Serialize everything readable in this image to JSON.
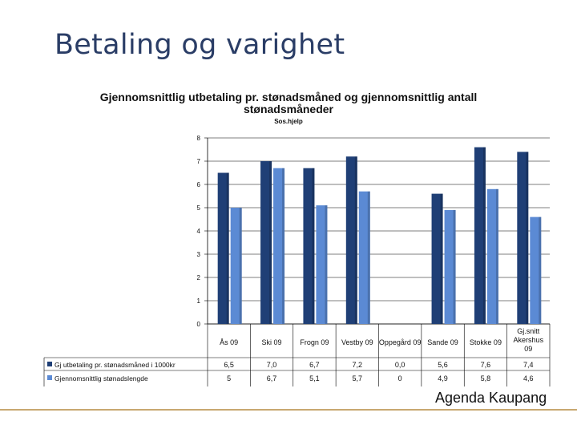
{
  "slide": {
    "title": "Betaling og varighet",
    "footer": "Agenda Kaupang"
  },
  "colors": {
    "series1": "#1f3f76",
    "series2": "#5b8ad4",
    "grid": "#000000",
    "footer_rule": "#c8a870"
  },
  "chart_data": {
    "type": "bar",
    "title": "Gjennomsnittlig utbetaling pr. stønadsmåned og gjennomsnittlig antall stønadsmåneder",
    "subtitle": "Sos.hjelp",
    "categories": [
      "Ås 09",
      "Ski 09",
      "Frogn 09",
      "Vestby 09",
      "Oppegård 09",
      "Sande 09",
      "Stokke 09",
      "Gj.snitt Akershus 09"
    ],
    "series": [
      {
        "name": "Gj utbetaling pr. stønadsmåned i 1000kr",
        "values": [
          6.5,
          7.0,
          6.7,
          7.2,
          0.0,
          5.6,
          7.6,
          7.4
        ],
        "labels": [
          "6,5",
          "7,0",
          "6,7",
          "7,2",
          "0,0",
          "5,6",
          "7,6",
          "7,4"
        ]
      },
      {
        "name": "Gjennomsnittlig stønadslengde",
        "values": [
          5,
          6.7,
          5.1,
          5.7,
          0,
          4.9,
          5.8,
          4.6
        ],
        "labels": [
          "5",
          "6,7",
          "5,1",
          "5,7",
          "0",
          "4,9",
          "5,8",
          "4,6"
        ]
      }
    ],
    "ylim": [
      0,
      8
    ],
    "yticks": [
      "0",
      "1",
      "2",
      "3",
      "4",
      "5",
      "6",
      "7",
      "8"
    ],
    "grid": true,
    "legend": "data-table-left"
  }
}
